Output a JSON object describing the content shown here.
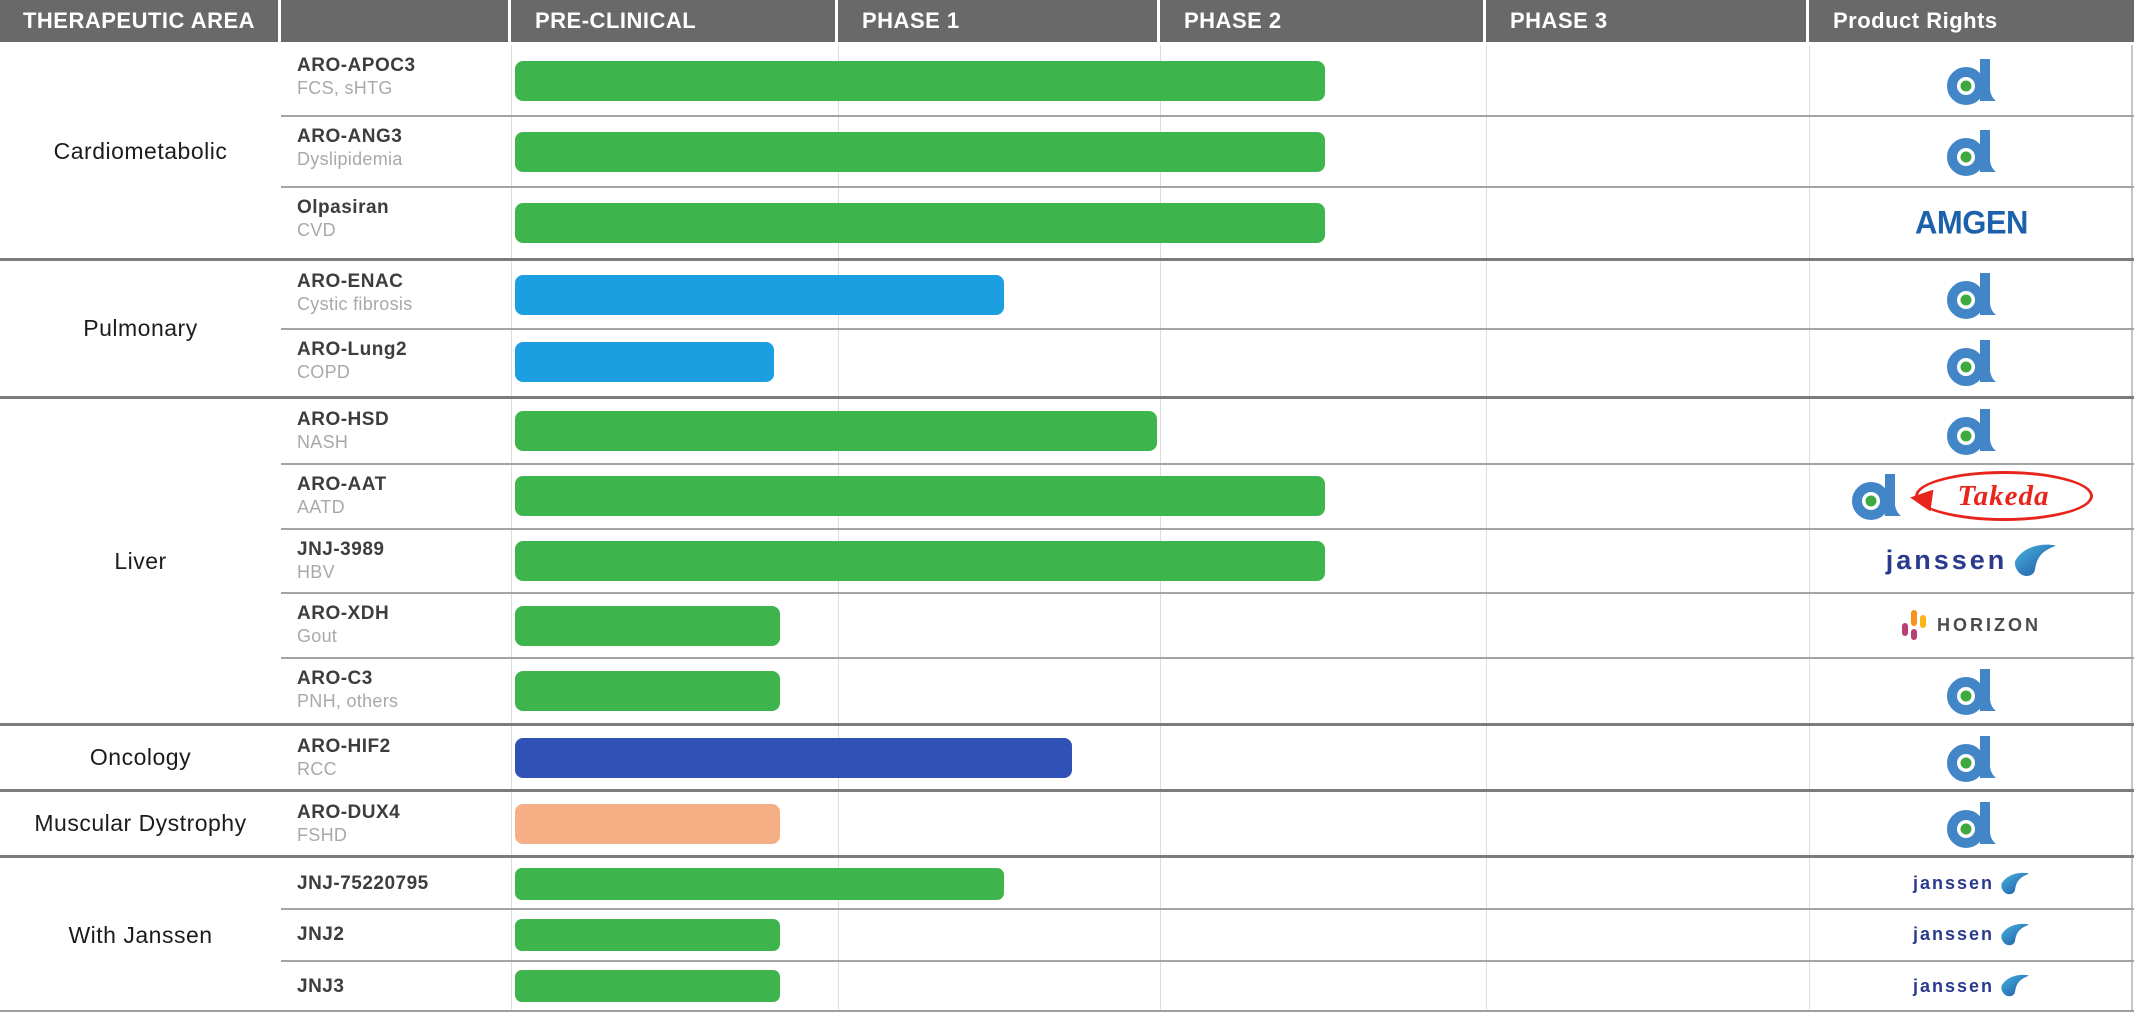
{
  "header": {
    "columns": [
      "THERAPEUTIC AREA",
      "",
      "PRE-CLINICAL",
      "PHASE 1",
      "PHASE 2",
      "PHASE 3",
      "Product Rights"
    ]
  },
  "colors": {
    "header_bg": "#696969",
    "bars": {
      "green": "#3eb54c",
      "blue": "#1b9fe1",
      "darkblue": "#3051b5",
      "orange": "#f6ae85"
    },
    "arrowhead_blue": "#4286c8",
    "arrowhead_green": "#3ea93e",
    "amgen_blue": "#1b61ab",
    "takeda_red": "#e8251d",
    "janssen_navy": "#2a3a8c",
    "horizon_magenta": "#b93f77",
    "horizon_orange": "#f6921e",
    "horizon_amber": "#fdb713"
  },
  "logo_text": {
    "amgen": "AMGEN",
    "takeda": "Takeda",
    "janssen": "janssen",
    "horizon": "HORIZON"
  },
  "chart_data": {
    "type": "bar",
    "orientation": "horizontal",
    "x_axis": {
      "categories": [
        "PRE-CLINICAL",
        "PHASE 1",
        "PHASE 2",
        "PHASE 3"
      ],
      "range": [
        0,
        4
      ],
      "note": "bar_end measured in phase units: 0 = start of pre-clinical, 1 = start of Phase 1, 2 = start of Phase 2, 3 = start of Phase 3"
    },
    "legend": null,
    "grid": "faint vertical lines at phase boundaries",
    "groups": [
      {
        "area": "Cardiometabolic",
        "rows": [
          {
            "name": "ARO-APOC3",
            "indication": "FCS, sHTG",
            "color": "green",
            "bar_end": 2.51,
            "rights": [
              "arrowhead"
            ]
          },
          {
            "name": "ARO-ANG3",
            "indication": "Dyslipidemia",
            "color": "green",
            "bar_end": 2.51,
            "rights": [
              "arrowhead"
            ]
          },
          {
            "name": "Olpasiran",
            "indication": "CVD",
            "color": "green",
            "bar_end": 2.51,
            "rights": [
              "amgen"
            ]
          }
        ]
      },
      {
        "area": "Pulmonary",
        "rows": [
          {
            "name": "ARO-ENAC",
            "indication": "Cystic fibrosis",
            "color": "blue",
            "bar_end": 1.52,
            "rights": [
              "arrowhead"
            ]
          },
          {
            "name": "ARO-Lung2",
            "indication": "COPD",
            "color": "blue",
            "bar_end": 0.81,
            "rights": [
              "arrowhead"
            ]
          }
        ]
      },
      {
        "area": "Liver",
        "rows": [
          {
            "name": "ARO-HSD",
            "indication": "NASH",
            "color": "green",
            "bar_end": 1.99,
            "rights": [
              "arrowhead"
            ]
          },
          {
            "name": "ARO-AAT",
            "indication": "AATD",
            "color": "green",
            "bar_end": 2.51,
            "rights": [
              "arrowhead",
              "takeda"
            ]
          },
          {
            "name": "JNJ-3989",
            "indication": "HBV",
            "color": "green",
            "bar_end": 2.51,
            "rights": [
              "janssen"
            ]
          },
          {
            "name": "ARO-XDH",
            "indication": "Gout",
            "color": "green",
            "bar_end": 0.83,
            "rights": [
              "horizon"
            ]
          },
          {
            "name": "ARO-C3",
            "indication": "PNH, others",
            "color": "green",
            "bar_end": 0.83,
            "rights": [
              "arrowhead"
            ]
          }
        ]
      },
      {
        "area": "Oncology",
        "rows": [
          {
            "name": "ARO-HIF2",
            "indication": "RCC",
            "color": "darkblue",
            "bar_end": 1.73,
            "rights": [
              "arrowhead"
            ]
          }
        ]
      },
      {
        "area": "Muscular Dystrophy",
        "rows": [
          {
            "name": "ARO-DUX4",
            "indication": "FSHD",
            "color": "orange",
            "bar_end": 0.83,
            "rights": [
              "arrowhead"
            ]
          }
        ]
      },
      {
        "area": "With Janssen",
        "compact": true,
        "rows": [
          {
            "name": "JNJ-75220795",
            "indication": "",
            "color": "green",
            "bar_end": 1.52,
            "rights": [
              "janssen-small"
            ]
          },
          {
            "name": "JNJ2",
            "indication": "",
            "color": "green",
            "bar_end": 0.83,
            "rights": [
              "janssen-small"
            ]
          },
          {
            "name": "JNJ3",
            "indication": "",
            "color": "green",
            "bar_end": 0.83,
            "rights": [
              "janssen-small"
            ]
          }
        ]
      }
    ]
  }
}
